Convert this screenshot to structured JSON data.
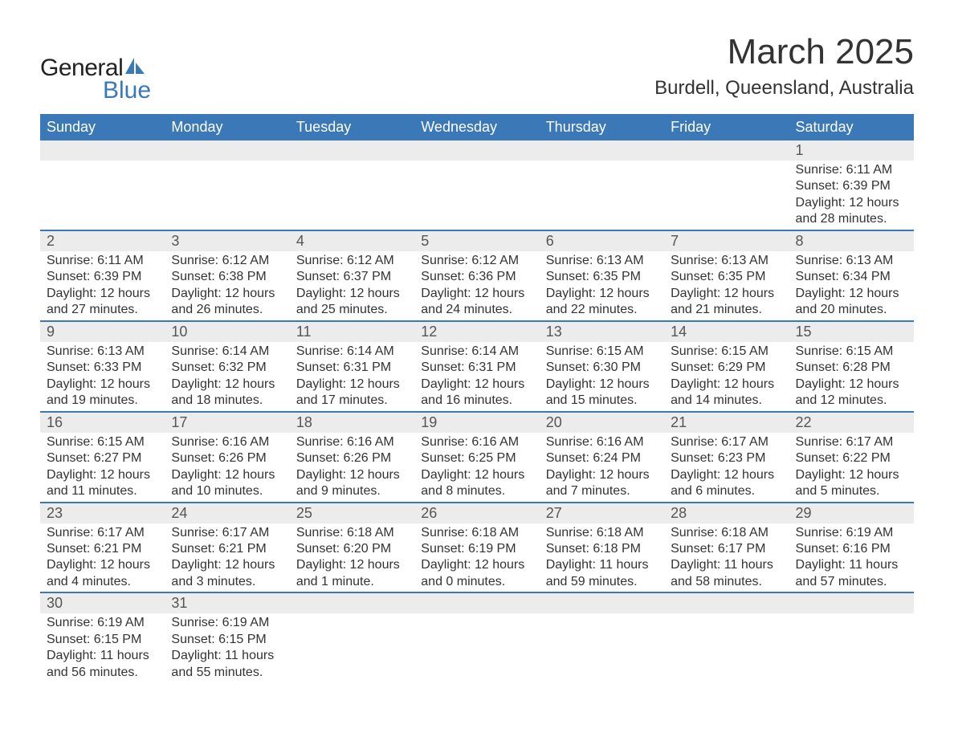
{
  "logo": {
    "word1": "General",
    "word2": "Blue",
    "text_color": "#222222",
    "accent_color": "#3a78b8"
  },
  "header": {
    "month_title": "March 2025",
    "location": "Burdell, Queensland, Australia"
  },
  "style": {
    "header_bg": "#3a78b8",
    "header_fg": "#ffffff",
    "strip_bg": "#ececec",
    "strip_border": "#3a78b8",
    "body_bg": "#ffffff",
    "text_color": "#333333",
    "daynum_color": "#555555",
    "dow_fontsize": 18,
    "title_fontsize": 44,
    "location_fontsize": 24,
    "info_fontsize": 16
  },
  "days_of_week": [
    "Sunday",
    "Monday",
    "Tuesday",
    "Wednesday",
    "Thursday",
    "Friday",
    "Saturday"
  ],
  "weeks": [
    [
      {
        "blank": true
      },
      {
        "blank": true
      },
      {
        "blank": true
      },
      {
        "blank": true
      },
      {
        "blank": true
      },
      {
        "blank": true
      },
      {
        "day": "1",
        "sunrise": "Sunrise: 6:11 AM",
        "sunset": "Sunset: 6:39 PM",
        "dl1": "Daylight: 12 hours",
        "dl2": "and 28 minutes."
      }
    ],
    [
      {
        "day": "2",
        "sunrise": "Sunrise: 6:11 AM",
        "sunset": "Sunset: 6:39 PM",
        "dl1": "Daylight: 12 hours",
        "dl2": "and 27 minutes."
      },
      {
        "day": "3",
        "sunrise": "Sunrise: 6:12 AM",
        "sunset": "Sunset: 6:38 PM",
        "dl1": "Daylight: 12 hours",
        "dl2": "and 26 minutes."
      },
      {
        "day": "4",
        "sunrise": "Sunrise: 6:12 AM",
        "sunset": "Sunset: 6:37 PM",
        "dl1": "Daylight: 12 hours",
        "dl2": "and 25 minutes."
      },
      {
        "day": "5",
        "sunrise": "Sunrise: 6:12 AM",
        "sunset": "Sunset: 6:36 PM",
        "dl1": "Daylight: 12 hours",
        "dl2": "and 24 minutes."
      },
      {
        "day": "6",
        "sunrise": "Sunrise: 6:13 AM",
        "sunset": "Sunset: 6:35 PM",
        "dl1": "Daylight: 12 hours",
        "dl2": "and 22 minutes."
      },
      {
        "day": "7",
        "sunrise": "Sunrise: 6:13 AM",
        "sunset": "Sunset: 6:35 PM",
        "dl1": "Daylight: 12 hours",
        "dl2": "and 21 minutes."
      },
      {
        "day": "8",
        "sunrise": "Sunrise: 6:13 AM",
        "sunset": "Sunset: 6:34 PM",
        "dl1": "Daylight: 12 hours",
        "dl2": "and 20 minutes."
      }
    ],
    [
      {
        "day": "9",
        "sunrise": "Sunrise: 6:13 AM",
        "sunset": "Sunset: 6:33 PM",
        "dl1": "Daylight: 12 hours",
        "dl2": "and 19 minutes."
      },
      {
        "day": "10",
        "sunrise": "Sunrise: 6:14 AM",
        "sunset": "Sunset: 6:32 PM",
        "dl1": "Daylight: 12 hours",
        "dl2": "and 18 minutes."
      },
      {
        "day": "11",
        "sunrise": "Sunrise: 6:14 AM",
        "sunset": "Sunset: 6:31 PM",
        "dl1": "Daylight: 12 hours",
        "dl2": "and 17 minutes."
      },
      {
        "day": "12",
        "sunrise": "Sunrise: 6:14 AM",
        "sunset": "Sunset: 6:31 PM",
        "dl1": "Daylight: 12 hours",
        "dl2": "and 16 minutes."
      },
      {
        "day": "13",
        "sunrise": "Sunrise: 6:15 AM",
        "sunset": "Sunset: 6:30 PM",
        "dl1": "Daylight: 12 hours",
        "dl2": "and 15 minutes."
      },
      {
        "day": "14",
        "sunrise": "Sunrise: 6:15 AM",
        "sunset": "Sunset: 6:29 PM",
        "dl1": "Daylight: 12 hours",
        "dl2": "and 14 minutes."
      },
      {
        "day": "15",
        "sunrise": "Sunrise: 6:15 AM",
        "sunset": "Sunset: 6:28 PM",
        "dl1": "Daylight: 12 hours",
        "dl2": "and 12 minutes."
      }
    ],
    [
      {
        "day": "16",
        "sunrise": "Sunrise: 6:15 AM",
        "sunset": "Sunset: 6:27 PM",
        "dl1": "Daylight: 12 hours",
        "dl2": "and 11 minutes."
      },
      {
        "day": "17",
        "sunrise": "Sunrise: 6:16 AM",
        "sunset": "Sunset: 6:26 PM",
        "dl1": "Daylight: 12 hours",
        "dl2": "and 10 minutes."
      },
      {
        "day": "18",
        "sunrise": "Sunrise: 6:16 AM",
        "sunset": "Sunset: 6:26 PM",
        "dl1": "Daylight: 12 hours",
        "dl2": "and 9 minutes."
      },
      {
        "day": "19",
        "sunrise": "Sunrise: 6:16 AM",
        "sunset": "Sunset: 6:25 PM",
        "dl1": "Daylight: 12 hours",
        "dl2": "and 8 minutes."
      },
      {
        "day": "20",
        "sunrise": "Sunrise: 6:16 AM",
        "sunset": "Sunset: 6:24 PM",
        "dl1": "Daylight: 12 hours",
        "dl2": "and 7 minutes."
      },
      {
        "day": "21",
        "sunrise": "Sunrise: 6:17 AM",
        "sunset": "Sunset: 6:23 PM",
        "dl1": "Daylight: 12 hours",
        "dl2": "and 6 minutes."
      },
      {
        "day": "22",
        "sunrise": "Sunrise: 6:17 AM",
        "sunset": "Sunset: 6:22 PM",
        "dl1": "Daylight: 12 hours",
        "dl2": "and 5 minutes."
      }
    ],
    [
      {
        "day": "23",
        "sunrise": "Sunrise: 6:17 AM",
        "sunset": "Sunset: 6:21 PM",
        "dl1": "Daylight: 12 hours",
        "dl2": "and 4 minutes."
      },
      {
        "day": "24",
        "sunrise": "Sunrise: 6:17 AM",
        "sunset": "Sunset: 6:21 PM",
        "dl1": "Daylight: 12 hours",
        "dl2": "and 3 minutes."
      },
      {
        "day": "25",
        "sunrise": "Sunrise: 6:18 AM",
        "sunset": "Sunset: 6:20 PM",
        "dl1": "Daylight: 12 hours",
        "dl2": "and 1 minute."
      },
      {
        "day": "26",
        "sunrise": "Sunrise: 6:18 AM",
        "sunset": "Sunset: 6:19 PM",
        "dl1": "Daylight: 12 hours",
        "dl2": "and 0 minutes."
      },
      {
        "day": "27",
        "sunrise": "Sunrise: 6:18 AM",
        "sunset": "Sunset: 6:18 PM",
        "dl1": "Daylight: 11 hours",
        "dl2": "and 59 minutes."
      },
      {
        "day": "28",
        "sunrise": "Sunrise: 6:18 AM",
        "sunset": "Sunset: 6:17 PM",
        "dl1": "Daylight: 11 hours",
        "dl2": "and 58 minutes."
      },
      {
        "day": "29",
        "sunrise": "Sunrise: 6:19 AM",
        "sunset": "Sunset: 6:16 PM",
        "dl1": "Daylight: 11 hours",
        "dl2": "and 57 minutes."
      }
    ],
    [
      {
        "day": "30",
        "sunrise": "Sunrise: 6:19 AM",
        "sunset": "Sunset: 6:15 PM",
        "dl1": "Daylight: 11 hours",
        "dl2": "and 56 minutes."
      },
      {
        "day": "31",
        "sunrise": "Sunrise: 6:19 AM",
        "sunset": "Sunset: 6:15 PM",
        "dl1": "Daylight: 11 hours",
        "dl2": "and 55 minutes."
      },
      {
        "blank": true
      },
      {
        "blank": true
      },
      {
        "blank": true
      },
      {
        "blank": true
      },
      {
        "blank": true
      }
    ]
  ]
}
